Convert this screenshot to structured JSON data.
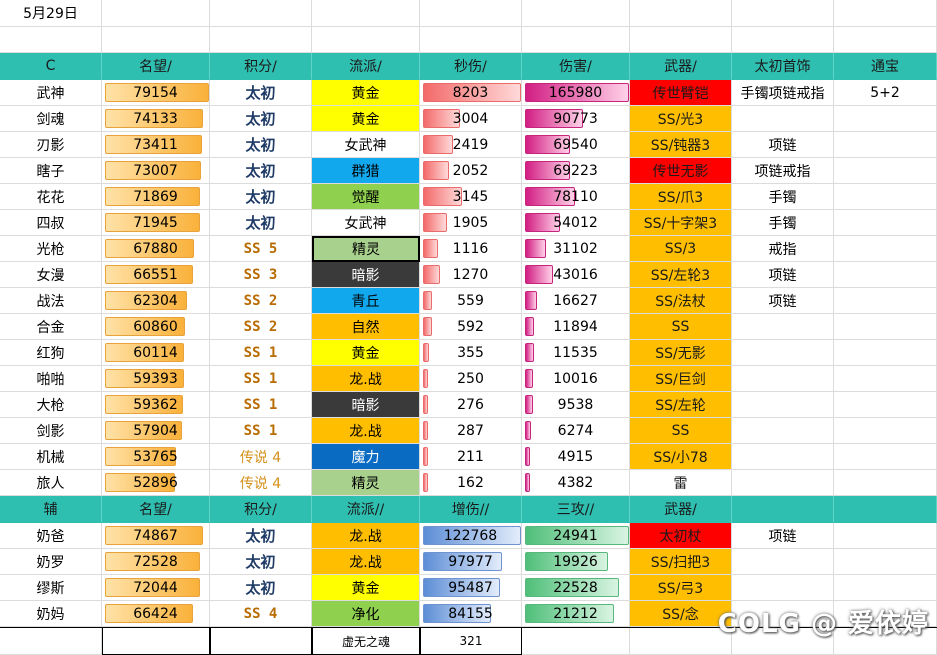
{
  "date": "5月29日",
  "colors": {
    "header": "#2fbfb0",
    "yellow": "#ffff00",
    "white": "#ffffff",
    "sky": "#11a8ee",
    "green": "#8fd14f",
    "lightgreen": "#a9d18e",
    "dark": "#3a3a3a",
    "orange": "#ffbf00",
    "navy": "#0a6bc2",
    "red": "#ff0000"
  },
  "c_header": [
    "C",
    "名望/",
    "积分/",
    "流派/",
    "秒伤/",
    "伤害/",
    "武器/",
    "太初首饰",
    "通宝"
  ],
  "c_rows": [
    {
      "name": "武神",
      "rep": "79154",
      "score": "太初",
      "st": "ti",
      "school": "黄金",
      "sc": "yellow",
      "sec": "8203",
      "dmg": "165980",
      "weapon": "传世臂铠",
      "wc": "red",
      "jewel": "手镯项链戒指",
      "tb": "5+2"
    },
    {
      "name": "剑魂",
      "rep": "74133",
      "score": "太初",
      "st": "ti",
      "school": "黄金",
      "sc": "yellow",
      "sec": "3004",
      "dmg": "90773",
      "weapon": "SS/光3",
      "wc": "orange",
      "jewel": "",
      "tb": ""
    },
    {
      "name": "刃影",
      "rep": "73411",
      "score": "太初",
      "st": "ti",
      "school": "女武神",
      "sc": "white",
      "sec": "2419",
      "dmg": "69540",
      "weapon": "SS/钝器3",
      "wc": "orange",
      "jewel": "项链",
      "tb": ""
    },
    {
      "name": "瞎子",
      "rep": "73007",
      "score": "太初",
      "st": "ti",
      "school": "群猎",
      "sc": "sky",
      "sec": "2052",
      "dmg": "69223",
      "weapon": "传世无影",
      "wc": "red",
      "jewel": "项链戒指",
      "tb": ""
    },
    {
      "name": "花花",
      "rep": "71869",
      "score": "太初",
      "st": "ti",
      "school": "觉醒",
      "sc": "green",
      "sec": "3145",
      "dmg": "78110",
      "weapon": "SS/爪3",
      "wc": "orange",
      "jewel": "手镯",
      "tb": ""
    },
    {
      "name": "四叔",
      "rep": "71945",
      "score": "太初",
      "st": "ti",
      "school": "女武神",
      "sc": "white",
      "sec": "1905",
      "dmg": "54012",
      "weapon": "SS/十字架3",
      "wc": "orange",
      "jewel": "手镯",
      "tb": ""
    },
    {
      "name": "光枪",
      "rep": "67880",
      "score": "SS 5",
      "st": "ss",
      "school": "精灵",
      "sc": "lightgreen",
      "sec": "1116",
      "dmg": "31102",
      "weapon": "SS/3",
      "wc": "orange",
      "jewel": "戒指",
      "tb": ""
    },
    {
      "name": "女漫",
      "rep": "66551",
      "score": "SS 3",
      "st": "ss",
      "school": "暗影",
      "sc": "dark",
      "sec": "1270",
      "dmg": "43016",
      "weapon": "SS/左轮3",
      "wc": "orange",
      "jewel": "项链",
      "tb": ""
    },
    {
      "name": "战法",
      "rep": "62304",
      "score": "SS 2",
      "st": "ss",
      "school": "青丘",
      "sc": "sky",
      "sec": "559",
      "dmg": "16627",
      "weapon": "SS/法杖",
      "wc": "orange",
      "jewel": "项链",
      "tb": ""
    },
    {
      "name": "合金",
      "rep": "60860",
      "score": "SS 2",
      "st": "ss",
      "school": "自然",
      "sc": "orange",
      "sec": "592",
      "dmg": "11894",
      "weapon": "SS",
      "wc": "orange",
      "jewel": "",
      "tb": ""
    },
    {
      "name": "红狗",
      "rep": "60114",
      "score": "SS 1",
      "st": "ss",
      "school": "黄金",
      "sc": "yellow",
      "sec": "355",
      "dmg": "11535",
      "weapon": "SS/无影",
      "wc": "orange",
      "jewel": "",
      "tb": ""
    },
    {
      "name": "啪啪",
      "rep": "59393",
      "score": "SS 1",
      "st": "ss",
      "school": "龙.战",
      "sc": "orange",
      "sec": "250",
      "dmg": "10016",
      "weapon": "SS/巨剑",
      "wc": "orange",
      "jewel": "",
      "tb": ""
    },
    {
      "name": "大枪",
      "rep": "59362",
      "score": "SS 1",
      "st": "ss",
      "school": "暗影",
      "sc": "dark",
      "sec": "276",
      "dmg": "9538",
      "weapon": "SS/左轮",
      "wc": "orange",
      "jewel": "",
      "tb": ""
    },
    {
      "name": "剑影",
      "rep": "57904",
      "score": "SS 1",
      "st": "ss",
      "school": "龙.战",
      "sc": "orange",
      "sec": "287",
      "dmg": "6274",
      "weapon": "SS",
      "wc": "orange",
      "jewel": "",
      "tb": ""
    },
    {
      "name": "机械",
      "rep": "53765",
      "score": "传说 4",
      "st": "cs",
      "school": "魔力",
      "sc": "navy",
      "sec": "211",
      "dmg": "4915",
      "weapon": "SS/小78",
      "wc": "orange",
      "jewel": "",
      "tb": ""
    },
    {
      "name": "旅人",
      "rep": "52896",
      "score": "传说 4",
      "st": "cs",
      "school": "精灵",
      "sc": "lightgreen",
      "sec": "162",
      "dmg": "4382",
      "weapon": "雷",
      "wc": "white",
      "jewel": "",
      "tb": ""
    }
  ],
  "s_header": [
    "辅",
    "名望/",
    "积分/",
    "流派//",
    "增伤//",
    "三攻//",
    "武器/",
    "",
    ""
  ],
  "s_rows": [
    {
      "name": "奶爸",
      "rep": "74867",
      "score": "太初",
      "st": "ti",
      "school": "龙.战",
      "sc": "orange",
      "buff": "122768",
      "atk": "24941",
      "weapon": "太初杖",
      "wc": "red",
      "jewel": "项链"
    },
    {
      "name": "奶罗",
      "rep": "72528",
      "score": "太初",
      "st": "ti",
      "school": "龙.战",
      "sc": "orange",
      "buff": "97977",
      "atk": "19926",
      "weapon": "SS/扫把3",
      "wc": "orange",
      "jewel": ""
    },
    {
      "name": "缪斯",
      "rep": "72044",
      "score": "太初",
      "st": "ti",
      "school": "黄金",
      "sc": "yellow",
      "buff": "95487",
      "atk": "22528",
      "weapon": "SS/弓3",
      "wc": "orange",
      "jewel": ""
    },
    {
      "name": "奶妈",
      "rep": "66424",
      "score": "SS 4",
      "st": "ss",
      "school": "净化",
      "sc": "green",
      "buff": "84155",
      "atk": "21212",
      "weapon": "SS/念",
      "wc": "orange",
      "jewel": ""
    }
  ],
  "footer": {
    "label": "虚无之魂",
    "value": "321"
  },
  "watermark": "COLG @ 爱依婷"
}
